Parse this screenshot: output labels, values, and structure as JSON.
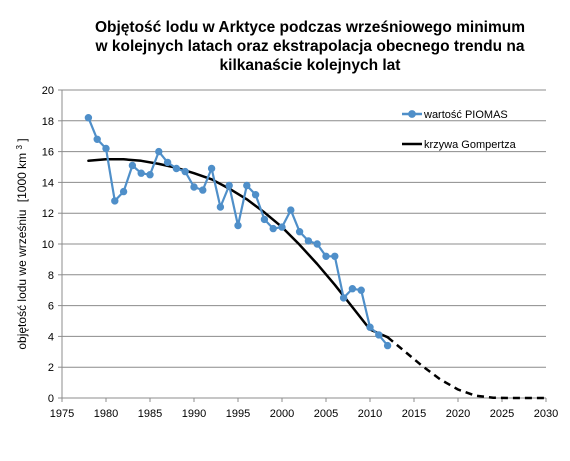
{
  "chart_data": {
    "type": "line",
    "title_lines": [
      "Objętość lodu w Arktyce podczas wrześniowego minimum",
      "w kolejnych latach oraz ekstrapolacja obecnego trendu na",
      "kilkanaście kolejnych lat"
    ],
    "ylabel_main": "objętość lodu we wrześniu",
    "ylabel_unit": "[1000 km",
    "ylabel_unit_sup": "3",
    "ylabel_unit_end": "]",
    "xlabel": "",
    "xlim": [
      1975,
      2030
    ],
    "ylim": [
      0,
      20
    ],
    "x_ticks": [
      "1975",
      "1980",
      "1985",
      "1990",
      "1995",
      "2000",
      "2005",
      "2010",
      "2015",
      "2020",
      "2025",
      "2030"
    ],
    "y_ticks": [
      "0",
      "2",
      "4",
      "6",
      "8",
      "10",
      "12",
      "14",
      "16",
      "18",
      "20"
    ],
    "grid": "horizontal",
    "legend_position": "top-right",
    "series": [
      {
        "name": "wartość PIOMAS",
        "type": "line-marker",
        "color": "#4f8fc9",
        "x": [
          1978,
          1979,
          1980,
          1981,
          1982,
          1983,
          1984,
          1985,
          1986,
          1987,
          1988,
          1989,
          1990,
          1991,
          1992,
          1993,
          1994,
          1995,
          1996,
          1997,
          1998,
          1999,
          2000,
          2001,
          2002,
          2003,
          2004,
          2005,
          2006,
          2007,
          2008,
          2009,
          2010,
          2011,
          2012
        ],
        "y": [
          18.2,
          16.8,
          16.2,
          12.8,
          13.4,
          15.1,
          14.6,
          14.5,
          16.0,
          15.3,
          14.9,
          14.7,
          13.7,
          13.5,
          14.9,
          12.4,
          13.8,
          11.2,
          13.8,
          13.2,
          11.6,
          11.0,
          11.1,
          12.2,
          10.8,
          10.2,
          10.0,
          9.2,
          9.2,
          6.5,
          7.1,
          7.0,
          4.6,
          4.1,
          3.4
        ]
      },
      {
        "name": "krzywa Gompertza",
        "type": "curve",
        "color": "#000000",
        "x": [
          1978,
          1980,
          1982,
          1984,
          1986,
          1988,
          1990,
          1992,
          1994,
          1996,
          1998,
          2000,
          2002,
          2004,
          2006,
          2008,
          2010,
          2012,
          2014,
          2016,
          2018,
          2020,
          2022,
          2024,
          2026,
          2028,
          2030
        ],
        "y": [
          15.4,
          15.5,
          15.5,
          15.4,
          15.2,
          14.95,
          14.6,
          14.2,
          13.6,
          12.9,
          12.05,
          11.1,
          9.95,
          8.7,
          7.35,
          5.9,
          4.45,
          3.95,
          3.0,
          2.05,
          1.2,
          0.55,
          0.15,
          0.02,
          0.0,
          0.0,
          0.0
        ],
        "solid_until_x": 2012
      }
    ]
  }
}
